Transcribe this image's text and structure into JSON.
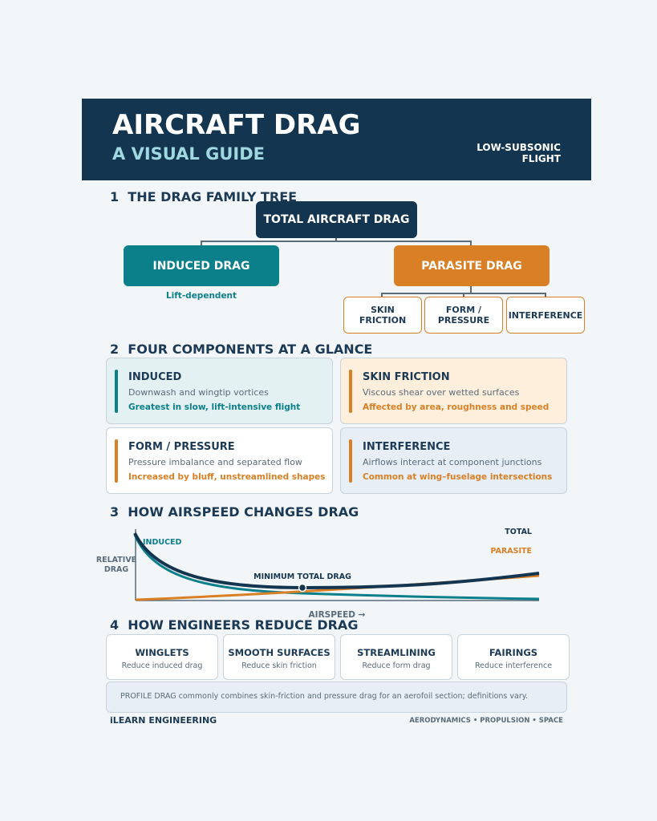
{
  "header": {
    "title": "AIRCRAFT DRAG",
    "subtitle": "A VISUAL GUIDE",
    "tag": [
      "LOW-SUBSONIC",
      "FLIGHT"
    ]
  },
  "sections": [
    {
      "number": "1",
      "title": "THE DRAG FAMILY TREE"
    },
    {
      "number": "2",
      "title": "FOUR COMPONENTS AT A GLANCE"
    },
    {
      "number": "3",
      "title": "HOW AIRSPEED CHANGES DRAG"
    },
    {
      "number": "4",
      "title": "HOW ENGINEERS REDUCE DRAG"
    }
  ],
  "tree": {
    "root": "TOTAL AIRCRAFT DRAG",
    "induced": {
      "label": "INDUCED DRAG",
      "note": "Lift-dependent"
    },
    "parasite": {
      "label": "PARASITE DRAG",
      "children": [
        "SKIN FRICTION",
        "FORM / PRESSURE",
        "INTERFERENCE"
      ]
    }
  },
  "components": [
    {
      "title": "INDUCED",
      "description": "Downwash and wingtip vortices",
      "note": "Greatest in slow, lift-intensive flight"
    },
    {
      "title": "SKIN FRICTION",
      "description": "Viscous shear over wetted surfaces",
      "note": "Affected by area, roughness and speed"
    },
    {
      "title": "FORM / PRESSURE",
      "description": "Pressure imbalance and separated flow",
      "note": "Increased by bluff, unstreamlined shapes"
    },
    {
      "title": "INTERFERENCE",
      "description": "Airflows interact at component junctions",
      "note": "Common at wing–fuselage intersections"
    }
  ],
  "chart": {
    "y_label": "RELATIVE DRAG",
    "x_label": "AIRSPEED  →",
    "induced_label": "INDUCED",
    "total_label": "TOTAL",
    "parasite_label": "PARASITE",
    "minimum_label": "MINIMUM TOTAL DRAG"
  },
  "methods": [
    {
      "title": "WINGLETS",
      "description": "Reduce induced drag"
    },
    {
      "title": "SMOOTH SURFACES",
      "description": "Reduce skin friction"
    },
    {
      "title": "STREAMLINING",
      "description": "Reduce form drag"
    },
    {
      "title": "FAIRINGS",
      "description": "Reduce interference"
    }
  ],
  "note": "PROFILE DRAG commonly combines skin-friction and pressure drag for an aerofoil section; definitions vary.",
  "footer": {
    "brand": "iLEARN ENGINEERING",
    "topics": "AERODYNAMICS • PROPULSION • SPACE"
  }
}
